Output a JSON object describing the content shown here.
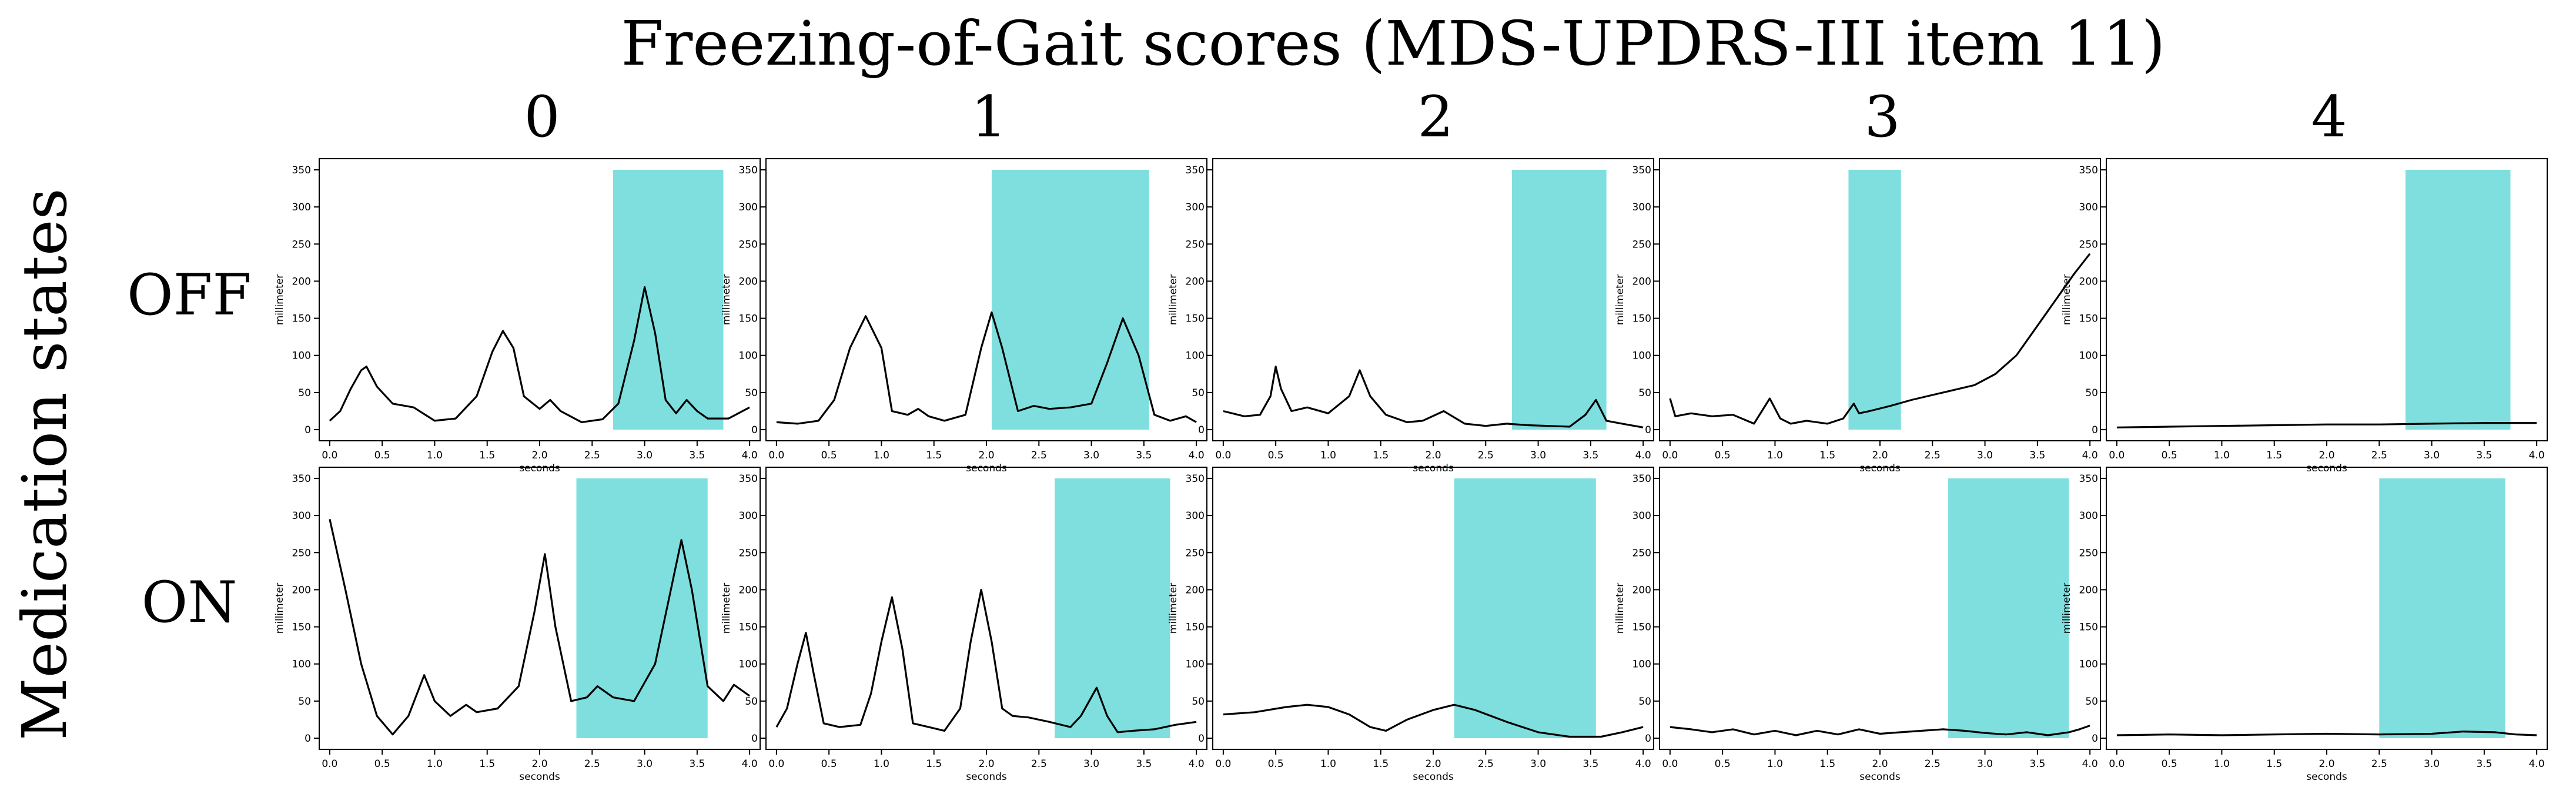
{
  "figure": {
    "title": "Freezing-of-Gait scores (MDS-UPDRS-III item 11)",
    "column_labels": [
      "0",
      "1",
      "2",
      "3",
      "4"
    ],
    "row_group_label": "Medication states",
    "row_labels": [
      "OFF",
      "ON"
    ]
  },
  "style": {
    "line_color": "#000000",
    "highlight_color": "#7fdfdf",
    "axes_color": "#000000"
  },
  "chart_data": [
    {
      "type": "line",
      "row": "OFF",
      "score": "0",
      "xlabel": "seconds",
      "ylabel": "millimeter",
      "xlim": [
        -0.1,
        4.1
      ],
      "ylim": [
        -15,
        365
      ],
      "xticks": [
        0.0,
        0.5,
        1.0,
        1.5,
        2.0,
        2.5,
        3.0,
        3.5,
        4.0
      ],
      "yticks": [
        0,
        50,
        100,
        150,
        200,
        250,
        300,
        350
      ],
      "highlight": [
        2.7,
        3.75
      ],
      "x": [
        0,
        0.1,
        0.2,
        0.3,
        0.35,
        0.45,
        0.6,
        0.8,
        1.0,
        1.2,
        1.4,
        1.55,
        1.65,
        1.75,
        1.85,
        2.0,
        2.1,
        2.2,
        2.4,
        2.6,
        2.75,
        2.9,
        3.0,
        3.1,
        3.2,
        3.3,
        3.4,
        3.5,
        3.6,
        3.8,
        4.0
      ],
      "y": [
        12,
        25,
        55,
        80,
        85,
        58,
        35,
        30,
        12,
        15,
        45,
        105,
        133,
        110,
        45,
        28,
        40,
        25,
        10,
        14,
        35,
        120,
        192,
        130,
        40,
        22,
        40,
        25,
        15,
        15,
        30
      ]
    },
    {
      "type": "line",
      "row": "OFF",
      "score": "1",
      "xlabel": "seconds",
      "ylabel": "millimeter",
      "xlim": [
        -0.1,
        4.1
      ],
      "ylim": [
        -15,
        365
      ],
      "xticks": [
        0.0,
        0.5,
        1.0,
        1.5,
        2.0,
        2.5,
        3.0,
        3.5,
        4.0
      ],
      "yticks": [
        0,
        50,
        100,
        150,
        200,
        250,
        300,
        350
      ],
      "highlight": [
        2.05,
        3.55
      ],
      "x": [
        0,
        0.2,
        0.4,
        0.55,
        0.7,
        0.85,
        1.0,
        1.1,
        1.25,
        1.35,
        1.45,
        1.6,
        1.8,
        1.95,
        2.05,
        2.15,
        2.3,
        2.45,
        2.6,
        2.8,
        3.0,
        3.15,
        3.3,
        3.45,
        3.6,
        3.75,
        3.9,
        4.0
      ],
      "y": [
        10,
        8,
        12,
        40,
        110,
        153,
        110,
        25,
        20,
        28,
        18,
        12,
        20,
        110,
        158,
        110,
        25,
        32,
        28,
        30,
        35,
        90,
        150,
        100,
        20,
        12,
        18,
        10
      ]
    },
    {
      "type": "line",
      "row": "OFF",
      "score": "2",
      "xlabel": "seconds",
      "ylabel": "millimeter",
      "xlim": [
        -0.1,
        4.1
      ],
      "ylim": [
        -15,
        365
      ],
      "xticks": [
        0.0,
        0.5,
        1.0,
        1.5,
        2.0,
        2.5,
        3.0,
        3.5,
        4.0
      ],
      "yticks": [
        0,
        50,
        100,
        150,
        200,
        250,
        300,
        350
      ],
      "highlight": [
        2.75,
        3.65
      ],
      "x": [
        0,
        0.2,
        0.35,
        0.45,
        0.5,
        0.55,
        0.65,
        0.8,
        1.0,
        1.2,
        1.3,
        1.4,
        1.55,
        1.75,
        1.9,
        2.1,
        2.3,
        2.5,
        2.7,
        2.9,
        3.1,
        3.3,
        3.45,
        3.55,
        3.65,
        3.8,
        4.0
      ],
      "y": [
        25,
        18,
        20,
        45,
        85,
        55,
        25,
        30,
        22,
        45,
        80,
        45,
        20,
        10,
        12,
        25,
        8,
        5,
        8,
        6,
        5,
        4,
        20,
        40,
        12,
        8,
        3
      ]
    },
    {
      "type": "line",
      "row": "OFF",
      "score": "3",
      "xlabel": "seconds",
      "ylabel": "millimeter",
      "xlim": [
        -0.1,
        4.1
      ],
      "ylim": [
        -15,
        365
      ],
      "xticks": [
        0.0,
        0.5,
        1.0,
        1.5,
        2.0,
        2.5,
        3.0,
        3.5,
        4.0
      ],
      "yticks": [
        0,
        50,
        100,
        150,
        200,
        250,
        300,
        350
      ],
      "highlight": [
        1.7,
        2.2
      ],
      "x": [
        0,
        0.05,
        0.2,
        0.4,
        0.6,
        0.8,
        0.95,
        1.05,
        1.15,
        1.3,
        1.5,
        1.65,
        1.75,
        1.8,
        1.9,
        2.1,
        2.3,
        2.6,
        2.9,
        3.1,
        3.3,
        3.5,
        3.7,
        3.85,
        4.0
      ],
      "y": [
        42,
        18,
        22,
        18,
        20,
        8,
        42,
        15,
        8,
        12,
        8,
        15,
        35,
        22,
        25,
        32,
        40,
        50,
        60,
        75,
        100,
        140,
        180,
        210,
        237
      ]
    },
    {
      "type": "line",
      "row": "OFF",
      "score": "4",
      "xlabel": "seconds",
      "ylabel": "millimeter",
      "xlim": [
        -0.1,
        4.1
      ],
      "ylim": [
        -15,
        365
      ],
      "xticks": [
        0.0,
        0.5,
        1.0,
        1.5,
        2.0,
        2.5,
        3.0,
        3.5,
        4.0
      ],
      "yticks": [
        0,
        50,
        100,
        150,
        200,
        250,
        300,
        350
      ],
      "highlight": [
        2.75,
        3.75
      ],
      "x": [
        0,
        0.5,
        1.0,
        1.5,
        2.0,
        2.5,
        3.0,
        3.5,
        4.0
      ],
      "y": [
        3,
        4,
        5,
        6,
        7,
        7,
        8,
        9,
        9
      ]
    },
    {
      "type": "line",
      "row": "ON",
      "score": "0",
      "xlabel": "seconds",
      "ylabel": "millimeter",
      "xlim": [
        -0.1,
        4.1
      ],
      "ylim": [
        -15,
        365
      ],
      "xticks": [
        0.0,
        0.5,
        1.0,
        1.5,
        2.0,
        2.5,
        3.0,
        3.5,
        4.0
      ],
      "yticks": [
        0,
        50,
        100,
        150,
        200,
        250,
        300,
        350
      ],
      "highlight": [
        2.35,
        3.6
      ],
      "x": [
        0,
        0.15,
        0.3,
        0.45,
        0.6,
        0.75,
        0.9,
        1.0,
        1.15,
        1.3,
        1.4,
        1.6,
        1.8,
        1.95,
        2.05,
        2.15,
        2.3,
        2.45,
        2.55,
        2.7,
        2.9,
        3.1,
        3.25,
        3.35,
        3.45,
        3.6,
        3.75,
        3.85,
        4.0
      ],
      "y": [
        295,
        200,
        100,
        30,
        5,
        30,
        85,
        50,
        30,
        45,
        35,
        40,
        70,
        170,
        248,
        150,
        50,
        55,
        70,
        55,
        50,
        100,
        200,
        267,
        200,
        70,
        50,
        72,
        57
      ]
    },
    {
      "type": "line",
      "row": "ON",
      "score": "1",
      "xlabel": "seconds",
      "ylabel": "millimeter",
      "xlim": [
        -0.1,
        4.1
      ],
      "ylim": [
        -15,
        365
      ],
      "xticks": [
        0.0,
        0.5,
        1.0,
        1.5,
        2.0,
        2.5,
        3.0,
        3.5,
        4.0
      ],
      "yticks": [
        0,
        50,
        100,
        150,
        200,
        250,
        300,
        350
      ],
      "highlight": [
        2.65,
        3.75
      ],
      "x": [
        0,
        0.1,
        0.2,
        0.28,
        0.35,
        0.45,
        0.6,
        0.8,
        0.9,
        1.0,
        1.1,
        1.2,
        1.3,
        1.45,
        1.6,
        1.75,
        1.85,
        1.95,
        2.05,
        2.15,
        2.25,
        2.4,
        2.6,
        2.8,
        2.9,
        3.05,
        3.15,
        3.25,
        3.4,
        3.6,
        3.8,
        4.0
      ],
      "y": [
        15,
        40,
        100,
        142,
        90,
        20,
        15,
        18,
        60,
        130,
        190,
        120,
        20,
        15,
        10,
        40,
        130,
        200,
        130,
        40,
        30,
        28,
        22,
        15,
        30,
        68,
        30,
        8,
        10,
        12,
        18,
        22
      ]
    },
    {
      "type": "line",
      "row": "ON",
      "score": "2",
      "xlabel": "seconds",
      "ylabel": "millimeter",
      "xlim": [
        -0.1,
        4.1
      ],
      "ylim": [
        -15,
        365
      ],
      "xticks": [
        0.0,
        0.5,
        1.0,
        1.5,
        2.0,
        2.5,
        3.0,
        3.5,
        4.0
      ],
      "yticks": [
        0,
        50,
        100,
        150,
        200,
        250,
        300,
        350
      ],
      "highlight": [
        2.2,
        3.55
      ],
      "x": [
        0,
        0.3,
        0.6,
        0.8,
        1.0,
        1.2,
        1.4,
        1.55,
        1.75,
        2.0,
        2.2,
        2.4,
        2.7,
        3.0,
        3.3,
        3.6,
        3.8,
        4.0
      ],
      "y": [
        32,
        35,
        42,
        45,
        42,
        32,
        15,
        10,
        25,
        38,
        45,
        38,
        22,
        8,
        2,
        2,
        8,
        15
      ]
    },
    {
      "type": "line",
      "row": "ON",
      "score": "3",
      "xlabel": "seconds",
      "ylabel": "millimeter",
      "xlim": [
        -0.1,
        4.1
      ],
      "ylim": [
        -15,
        365
      ],
      "xticks": [
        0.0,
        0.5,
        1.0,
        1.5,
        2.0,
        2.5,
        3.0,
        3.5,
        4.0
      ],
      "yticks": [
        0,
        50,
        100,
        150,
        200,
        250,
        300,
        350
      ],
      "highlight": [
        2.65,
        3.8
      ],
      "x": [
        0,
        0.2,
        0.4,
        0.6,
        0.8,
        1.0,
        1.2,
        1.4,
        1.6,
        1.8,
        2.0,
        2.2,
        2.4,
        2.6,
        2.8,
        3.0,
        3.2,
        3.4,
        3.6,
        3.8,
        3.9,
        4.0
      ],
      "y": [
        15,
        12,
        8,
        12,
        5,
        10,
        4,
        10,
        5,
        12,
        6,
        8,
        10,
        12,
        10,
        7,
        5,
        8,
        4,
        8,
        12,
        17
      ]
    },
    {
      "type": "line",
      "row": "ON",
      "score": "4",
      "xlabel": "seconds",
      "ylabel": "millimeter",
      "xlim": [
        -0.1,
        4.1
      ],
      "ylim": [
        -15,
        365
      ],
      "xticks": [
        0.0,
        0.5,
        1.0,
        1.5,
        2.0,
        2.5,
        3.0,
        3.5,
        4.0
      ],
      "yticks": [
        0,
        50,
        100,
        150,
        200,
        250,
        300,
        350
      ],
      "highlight": [
        2.5,
        3.7
      ],
      "x": [
        0,
        0.5,
        1.0,
        1.5,
        2.0,
        2.5,
        3.0,
        3.3,
        3.6,
        3.8,
        4.0
      ],
      "y": [
        4,
        5,
        4,
        5,
        6,
        5,
        6,
        9,
        8,
        5,
        4
      ]
    }
  ]
}
